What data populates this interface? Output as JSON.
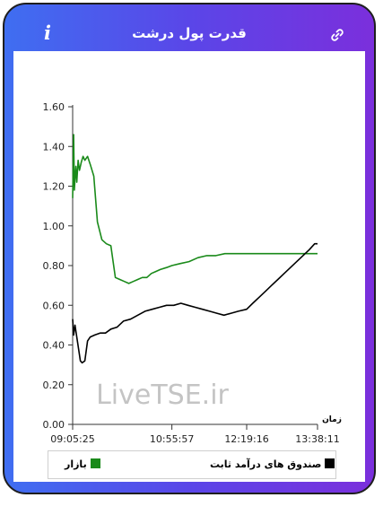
{
  "header": {
    "title": "قدرت پول درشت",
    "info_icon_glyph": "i",
    "info_icon": "info-icon",
    "link_icon": "link-icon"
  },
  "colors": {
    "gradient_start": "#3f6ef1",
    "gradient_end": "#7b2fdc",
    "market": "#1a8a1a",
    "funds": "#000000"
  },
  "watermark": "LiveTSE.ir",
  "chart_data": {
    "type": "line",
    "xlabel": "زمان",
    "ylabel": "",
    "ylim": [
      0,
      1.6
    ],
    "yticks": [
      "0.00",
      "0.20",
      "0.40",
      "0.60",
      "0.80",
      "1.00",
      "1.20",
      "1.40",
      "1.60"
    ],
    "x_tick_labels": [
      "09:05:25",
      "10:55:57",
      "12:19:16",
      "13:38:11"
    ],
    "grid": false,
    "legend_position": "bottom",
    "series": [
      {
        "name": "بازار",
        "color": "#1a8a1a",
        "x": [
          "09:05:25",
          "09:06:30",
          "09:07:20",
          "09:08:10",
          "09:09:00",
          "09:10:00",
          "09:11:30",
          "09:13:00",
          "09:15:00",
          "09:17:00",
          "09:19:00",
          "09:22:00",
          "09:25:00",
          "09:29:00",
          "09:33:00",
          "09:38:00",
          "09:43:00",
          "09:48:00",
          "09:53:00",
          "09:58:00",
          "10:03:00",
          "10:08:00",
          "10:13:00",
          "10:18:00",
          "10:23:00",
          "10:28:00",
          "10:33:00",
          "10:38:00",
          "10:43:00",
          "10:50:00",
          "10:55:57",
          "11:05:00",
          "11:15:00",
          "11:25:00",
          "11:35:00",
          "11:45:00",
          "11:55:00",
          "12:05:00",
          "12:19:16",
          "12:35:00",
          "12:50:00",
          "13:05:00",
          "13:20:00",
          "13:38:11"
        ],
        "values": [
          1.14,
          1.46,
          1.18,
          1.25,
          1.3,
          1.22,
          1.33,
          1.28,
          1.32,
          1.35,
          1.33,
          1.35,
          1.31,
          1.25,
          1.02,
          0.93,
          0.91,
          0.9,
          0.74,
          0.73,
          0.72,
          0.71,
          0.72,
          0.73,
          0.74,
          0.74,
          0.76,
          0.77,
          0.78,
          0.79,
          0.8,
          0.81,
          0.82,
          0.84,
          0.85,
          0.85,
          0.86,
          0.86,
          0.86,
          0.86,
          0.86,
          0.86,
          0.86,
          0.86
        ]
      },
      {
        "name": "صندوق های درآمد ثابت",
        "color": "#000000",
        "x": [
          "09:05:25",
          "09:06:30",
          "09:08:00",
          "09:10:00",
          "09:12:00",
          "09:14:00",
          "09:16:00",
          "09:19:00",
          "09:22:00",
          "09:25:00",
          "09:30:00",
          "09:36:00",
          "09:42:00",
          "09:48:00",
          "09:55:00",
          "10:02:00",
          "10:10:00",
          "10:18:00",
          "10:26:00",
          "10:34:00",
          "10:42:00",
          "10:50:00",
          "10:58:00",
          "11:06:00",
          "11:14:00",
          "11:22:00",
          "11:30:00",
          "11:38:00",
          "11:46:00",
          "11:54:00",
          "12:02:00",
          "12:10:00",
          "12:19:16",
          "12:26:00",
          "12:33:00",
          "12:40:00",
          "12:47:00",
          "12:54:00",
          "13:01:00",
          "13:08:00",
          "13:15:00",
          "13:22:00",
          "13:29:00",
          "13:35:00",
          "13:38:11"
        ],
        "values": [
          0.53,
          0.45,
          0.5,
          0.44,
          0.38,
          0.32,
          0.31,
          0.32,
          0.42,
          0.44,
          0.45,
          0.46,
          0.46,
          0.48,
          0.49,
          0.52,
          0.53,
          0.55,
          0.57,
          0.58,
          0.59,
          0.6,
          0.6,
          0.61,
          0.6,
          0.59,
          0.58,
          0.57,
          0.56,
          0.55,
          0.56,
          0.57,
          0.58,
          0.61,
          0.64,
          0.67,
          0.7,
          0.73,
          0.76,
          0.79,
          0.82,
          0.85,
          0.88,
          0.91,
          0.91
        ]
      }
    ]
  }
}
